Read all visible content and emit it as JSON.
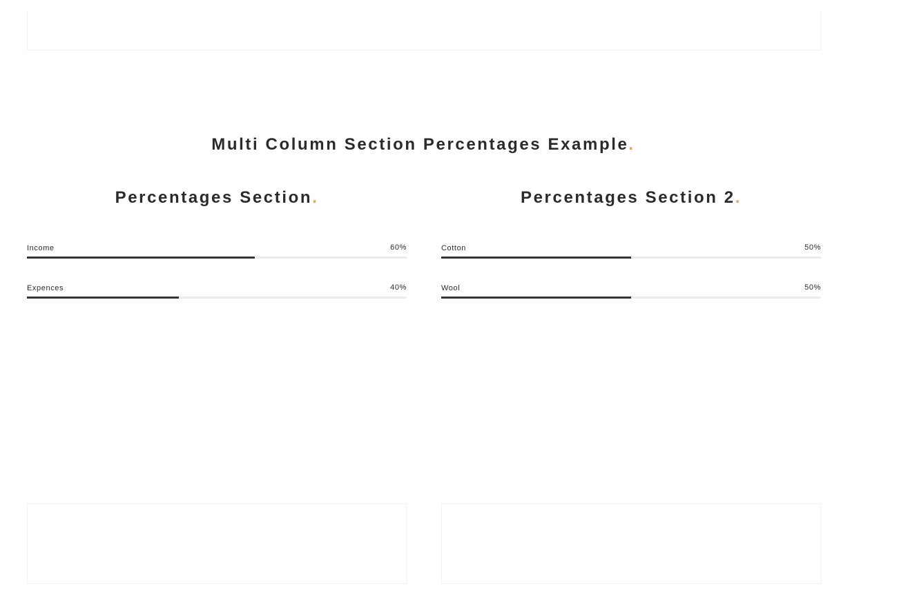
{
  "page": {
    "title": "Multi Column Section Percentages Example",
    "title_dot": ".",
    "accent_color": "#e0a95a"
  },
  "sections": [
    {
      "title": "Percentages Section",
      "dot": ".",
      "bars": [
        {
          "label": "Income",
          "value_text": "60%",
          "value": 0.6
        },
        {
          "label": "Expences",
          "value_text": "40%",
          "value": 0.4
        }
      ]
    },
    {
      "title": "Percentages Section 2",
      "dot": ".",
      "bars": [
        {
          "label": "Cotton",
          "value_text": "50%",
          "value": 0.5
        },
        {
          "label": "Wool",
          "value_text": "50%",
          "value": 0.5
        }
      ]
    }
  ]
}
